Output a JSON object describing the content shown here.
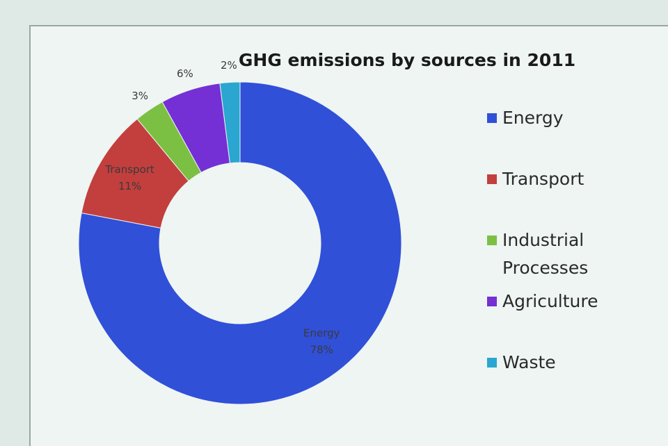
{
  "chart_data": {
    "type": "donut",
    "title": "GHG emissions by sources in 2011",
    "categories": [
      "Energy",
      "Transport",
      "Industrial Processes",
      "Agriculture",
      "Waste"
    ],
    "values": [
      78,
      11,
      3,
      6,
      2
    ],
    "value_labels": [
      "78%",
      "11%",
      "3%",
      "6%",
      "2%"
    ],
    "colors": [
      "#3050d8",
      "#c23f3e",
      "#7cc043",
      "#7430d4",
      "#2aa6d0"
    ],
    "legend": "right"
  }
}
